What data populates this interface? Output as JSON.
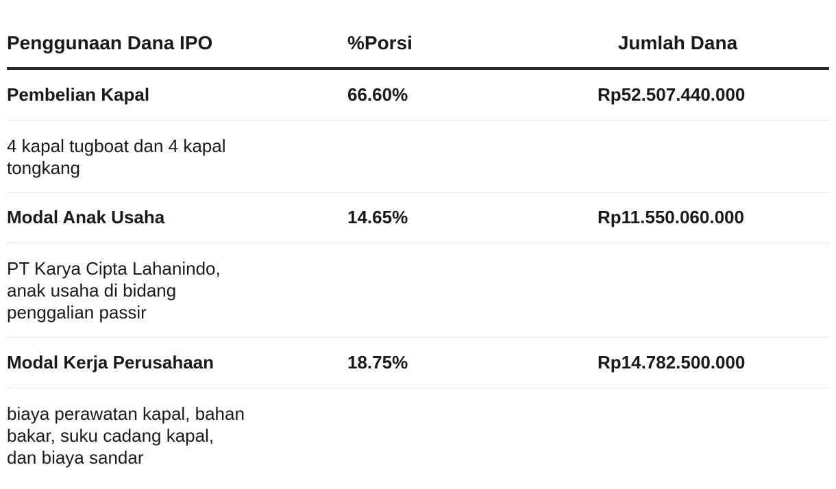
{
  "header": {
    "col1": "Penggunaan Dana IPO",
    "col2": "%Porsi",
    "col3": "Jumlah Dana"
  },
  "rows": [
    {
      "name": "Pembelian Kapal",
      "percent": "66.60%",
      "amount": "Rp52.507.440.000",
      "description": "4 kapal tugboat dan 4 kapal tongkang"
    },
    {
      "name": "Modal Anak Usaha",
      "percent": "14.65%",
      "amount": "Rp11.550.060.000",
      "description": "PT Karya Cipta Lahanindo, anak usaha di bidang penggalian passir"
    },
    {
      "name": "Modal Kerja Perusahaan",
      "percent": "18.75%",
      "amount": "Rp14.782.500.000",
      "description": "biaya perawatan kapal, bahan bakar, suku cadang kapal, dan biaya sandar"
    }
  ]
}
